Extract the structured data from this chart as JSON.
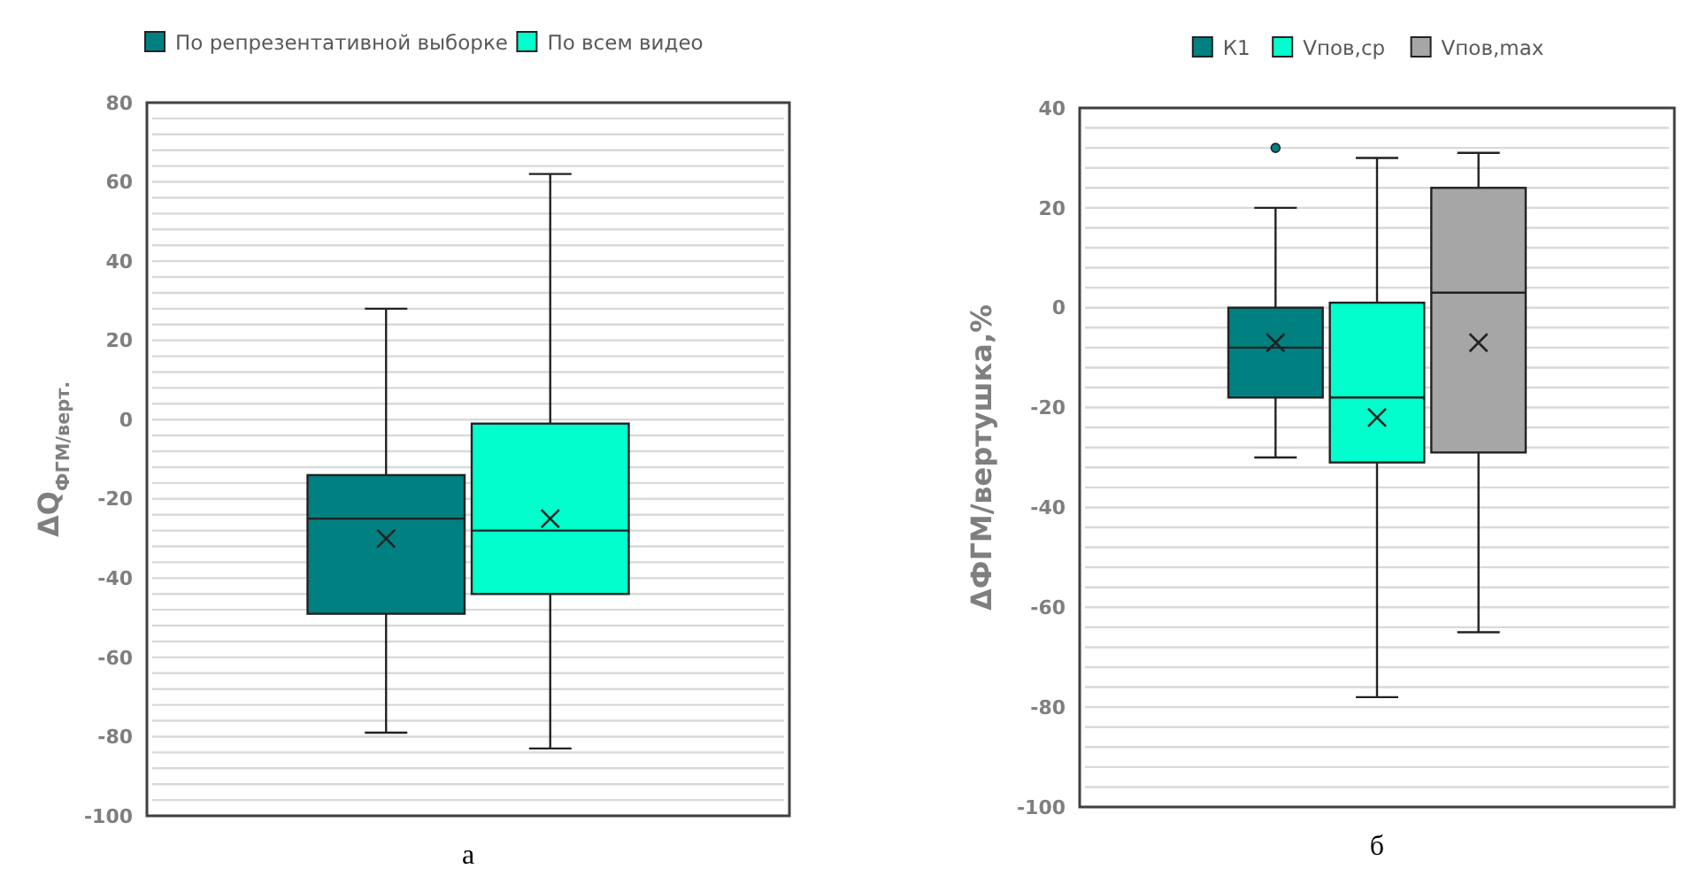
{
  "chart_data": [
    {
      "type": "box",
      "xlabel": "а",
      "ylabel": "ΔQ$_{ФГМ/верт.}$",
      "categories": [
        null
      ],
      "ylim": [
        -100,
        80
      ],
      "yticks": [
        -100,
        {
          "value": -96,
          "label": null
        },
        {
          "value": -92,
          "label": null
        },
        {
          "value": -88,
          "label": null
        },
        {
          "value": -84,
          "label": null
        },
        -80,
        {
          "value": -76,
          "label": null
        },
        {
          "value": -72,
          "label": null
        },
        {
          "value": -68,
          "label": null
        },
        {
          "value": -64,
          "label": null
        },
        -60,
        {
          "value": -56,
          "label": null
        },
        {
          "value": -52,
          "label": null
        },
        {
          "value": -48,
          "label": null
        },
        {
          "value": -44,
          "label": null
        },
        -40,
        {
          "value": -36,
          "label": null
        },
        {
          "value": -32,
          "label": null
        },
        {
          "value": -28,
          "label": null
        },
        {
          "value": -24,
          "label": null
        },
        -20,
        {
          "value": -16,
          "label": null
        },
        {
          "value": -12,
          "label": null
        },
        {
          "value": -8,
          "label": null
        },
        {
          "value": -4,
          "label": null
        },
        0,
        {
          "value": 4,
          "label": null
        },
        {
          "value": 8,
          "label": null
        },
        {
          "value": 12,
          "label": null
        },
        {
          "value": 16,
          "label": null
        },
        20,
        {
          "value": 24,
          "label": null
        },
        {
          "value": 28,
          "label": null
        },
        {
          "value": 32,
          "label": null
        },
        {
          "value": 36,
          "label": null
        },
        40,
        {
          "value": 44,
          "label": null
        },
        {
          "value": 48,
          "label": null
        },
        {
          "value": 52,
          "label": null
        },
        {
          "value": 56,
          "label": null
        },
        60,
        {
          "value": 64,
          "label": null
        },
        {
          "value": 68,
          "label": null
        },
        {
          "value": 72,
          "label": null
        },
        {
          "value": 76,
          "label": null
        },
        80
      ],
      "grid": true,
      "legend": "top",
      "series": [
        {
          "name": "По репрезентативной выборке",
          "color": "#008080",
          "boxes": [
            {
              "low": -79,
              "q1": -49,
              "median": -25,
              "q3": -14,
              "high": 28,
              "mean": -30
            }
          ]
        },
        {
          "name": "По всем видео",
          "color": "#00ffcc",
          "boxes": [
            {
              "low": -83,
              "q1": -44,
              "median": -28,
              "q3": -1,
              "high": 62,
              "mean": -25
            }
          ]
        }
      ]
    },
    {
      "type": "box",
      "xlabel": "б",
      "ylabel": "ΔФГМ/вертушка,%",
      "categories": [
        null
      ],
      "ylim": [
        -100,
        40
      ],
      "yticks": [
        -100,
        {
          "value": -96,
          "label": null
        },
        {
          "value": -92,
          "label": null
        },
        {
          "value": -88,
          "label": null
        },
        {
          "value": -84,
          "label": null
        },
        -80,
        {
          "value": -76,
          "label": null
        },
        {
          "value": -72,
          "label": null
        },
        {
          "value": -68,
          "label": null
        },
        {
          "value": -64,
          "label": null
        },
        -60,
        {
          "value": -56,
          "label": null
        },
        {
          "value": -52,
          "label": null
        },
        {
          "value": -48,
          "label": null
        },
        {
          "value": -44,
          "label": null
        },
        -40,
        {
          "value": -36,
          "label": null
        },
        {
          "value": -32,
          "label": null
        },
        {
          "value": -28,
          "label": null
        },
        {
          "value": -24,
          "label": null
        },
        -20,
        {
          "value": -16,
          "label": null
        },
        {
          "value": -12,
          "label": null
        },
        {
          "value": -8,
          "label": null
        },
        {
          "value": -4,
          "label": null
        },
        0,
        {
          "value": 4,
          "label": null
        },
        {
          "value": 8,
          "label": null
        },
        {
          "value": 12,
          "label": null
        },
        {
          "value": 16,
          "label": null
        },
        20,
        {
          "value": 24,
          "label": null
        },
        {
          "value": 28,
          "label": null
        },
        {
          "value": 32,
          "label": null
        },
        {
          "value": 36,
          "label": null
        },
        40
      ],
      "grid": true,
      "legend": "top",
      "series": [
        {
          "name": "К1",
          "color": "#008080",
          "boxes": [
            {
              "low": -30,
              "q1": -18,
              "median": -8,
              "q3": 0,
              "high": 20,
              "mean": -7,
              "outliers": [
                32
              ]
            }
          ]
        },
        {
          "name": "Vпов,ср",
          "color": "#00ffcc",
          "boxes": [
            {
              "low": -78,
              "q1": -31,
              "median": -18,
              "q3": 1,
              "high": 30,
              "mean": -22
            }
          ]
        },
        {
          "name": "Vпов,max",
          "color": "#a6a6a6",
          "boxes": [
            {
              "low": -65,
              "q1": -29,
              "median": 3,
              "q3": 24,
              "high": 31,
              "mean": -7
            }
          ]
        }
      ]
    }
  ]
}
